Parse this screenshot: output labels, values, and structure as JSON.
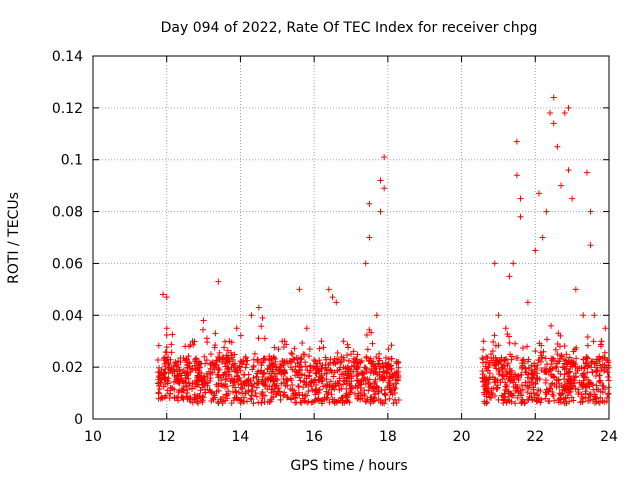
{
  "chart_data": {
    "type": "scatter",
    "title": "Day 094 of 2022, Rate Of TEC Index for receiver chpg",
    "xlabel": "GPS time / hours",
    "ylabel": "ROTI / TECUs",
    "xlim": [
      10,
      24
    ],
    "ylim": [
      0,
      0.14
    ],
    "xticks": [
      10,
      12,
      14,
      16,
      18,
      20,
      22,
      24
    ],
    "yticks": [
      0,
      0.02,
      0.04,
      0.06,
      0.08,
      0.1,
      0.12,
      0.14
    ],
    "xtick_labels": [
      "10",
      "12",
      "14",
      "16",
      "18",
      "20",
      "22",
      "24"
    ],
    "ytick_labels": [
      "0",
      "0.02",
      "0.04",
      "0.06",
      "0.08",
      "0.1",
      "0.12",
      "0.14"
    ],
    "grid": true,
    "marker": "+",
    "marker_color": "#ff0000",
    "series": [
      {
        "name": "ROTI",
        "points": [
          [
            11.8,
            0.018
          ],
          [
            11.9,
            0.048
          ],
          [
            12.0,
            0.047
          ],
          [
            12.0,
            0.035
          ],
          [
            12.1,
            0.012
          ],
          [
            12.3,
            0.015
          ],
          [
            12.5,
            0.028
          ],
          [
            12.7,
            0.03
          ],
          [
            12.9,
            0.02
          ],
          [
            13.0,
            0.038
          ],
          [
            13.2,
            0.025
          ],
          [
            13.4,
            0.053
          ],
          [
            13.5,
            0.022
          ],
          [
            13.7,
            0.03
          ],
          [
            13.9,
            0.035
          ],
          [
            14.1,
            0.014
          ],
          [
            14.3,
            0.04
          ],
          [
            14.5,
            0.043
          ],
          [
            14.6,
            0.039
          ],
          [
            14.8,
            0.02
          ],
          [
            15.0,
            0.015
          ],
          [
            15.2,
            0.03
          ],
          [
            15.4,
            0.025
          ],
          [
            15.6,
            0.05
          ],
          [
            15.8,
            0.035
          ],
          [
            16.0,
            0.02
          ],
          [
            16.2,
            0.03
          ],
          [
            16.4,
            0.05
          ],
          [
            16.5,
            0.047
          ],
          [
            16.6,
            0.045
          ],
          [
            16.8,
            0.03
          ],
          [
            17.0,
            0.025
          ],
          [
            17.2,
            0.02
          ],
          [
            17.4,
            0.06
          ],
          [
            17.5,
            0.07
          ],
          [
            17.5,
            0.083
          ],
          [
            17.7,
            0.04
          ],
          [
            17.8,
            0.08
          ],
          [
            17.8,
            0.092
          ],
          [
            17.9,
            0.101
          ],
          [
            17.9,
            0.089
          ],
          [
            18.0,
            0.02
          ],
          [
            18.2,
            0.015
          ],
          [
            20.6,
            0.03
          ],
          [
            20.8,
            0.025
          ],
          [
            20.9,
            0.06
          ],
          [
            21.0,
            0.04
          ],
          [
            21.2,
            0.035
          ],
          [
            21.3,
            0.055
          ],
          [
            21.4,
            0.06
          ],
          [
            21.5,
            0.107
          ],
          [
            21.5,
            0.094
          ],
          [
            21.6,
            0.078
          ],
          [
            21.6,
            0.085
          ],
          [
            21.8,
            0.045
          ],
          [
            22.0,
            0.065
          ],
          [
            22.1,
            0.087
          ],
          [
            22.2,
            0.07
          ],
          [
            22.3,
            0.08
          ],
          [
            22.4,
            0.118
          ],
          [
            22.5,
            0.124
          ],
          [
            22.5,
            0.114
          ],
          [
            22.6,
            0.105
          ],
          [
            22.7,
            0.09
          ],
          [
            22.8,
            0.118
          ],
          [
            22.9,
            0.12
          ],
          [
            22.9,
            0.096
          ],
          [
            23.0,
            0.085
          ],
          [
            23.1,
            0.05
          ],
          [
            23.3,
            0.04
          ],
          [
            23.4,
            0.095
          ],
          [
            23.5,
            0.08
          ],
          [
            23.5,
            0.067
          ],
          [
            23.6,
            0.04
          ],
          [
            23.8,
            0.03
          ],
          [
            23.9,
            0.035
          ]
        ]
      }
    ]
  }
}
